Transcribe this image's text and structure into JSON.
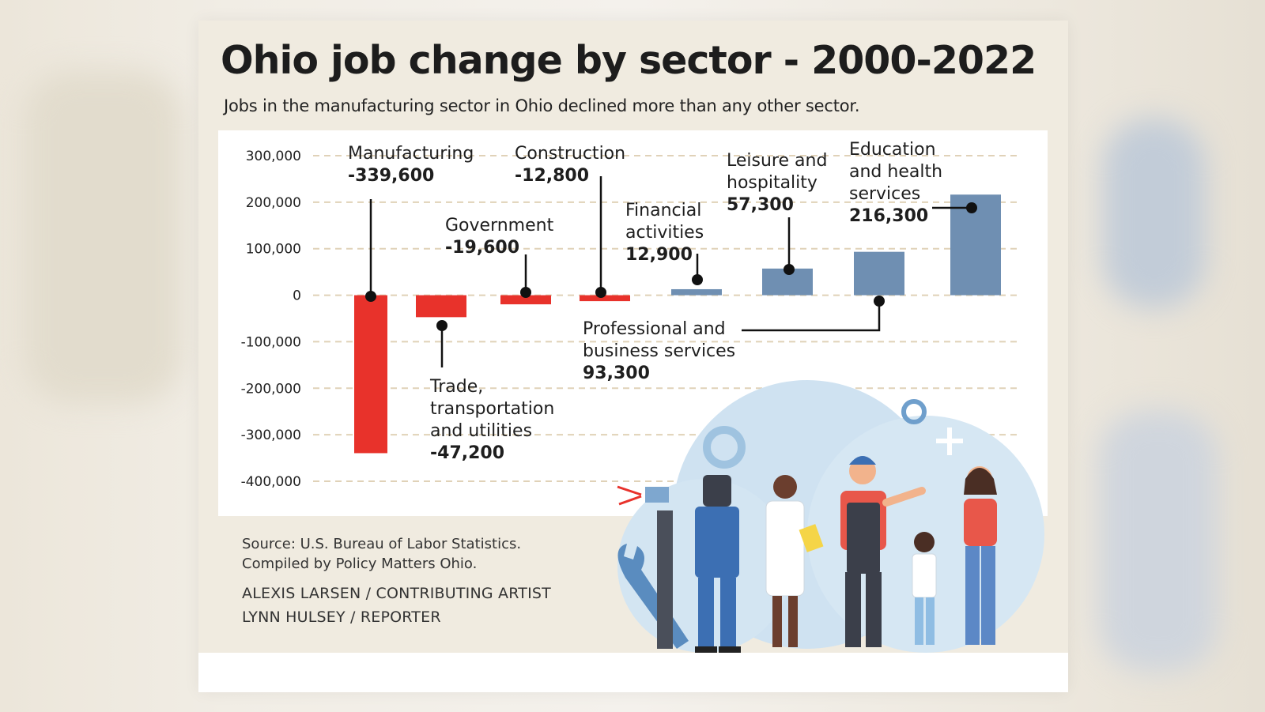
{
  "header": {
    "title": "Ohio job change by sector - 2000-2022",
    "subtitle": "Jobs in the manufacturing sector in Ohio declined more than any other sector."
  },
  "colors": {
    "negative": "#e8322b",
    "positive": "#6f8fb2",
    "gridline": "#e0d2b8",
    "text": "#1e1e1e"
  },
  "chart_data": {
    "type": "bar",
    "title": "Ohio job change by sector - 2000-2022",
    "ylim": [
      -400000,
      300000
    ],
    "yticks": [
      300000,
      200000,
      100000,
      0,
      -100000,
      -200000,
      -300000,
      -400000
    ],
    "ytick_labels": [
      "300,000",
      "200,000",
      "100,000",
      "0",
      "-100,000",
      "-200,000",
      "-300,000",
      "-400,000"
    ],
    "grid": true,
    "legend": "none",
    "categories": [
      "Manufacturing",
      "Trade, transportation and utilities",
      "Government",
      "Construction",
      "Financial activities",
      "Leisure and hospitality",
      "Professional and business services",
      "Education and health services"
    ],
    "values": [
      -339600,
      -47200,
      -19600,
      -12800,
      12900,
      57300,
      93300,
      216300
    ],
    "value_labels": [
      "-339,600",
      "-47,200",
      "-19,600",
      "-12,800",
      "12,900",
      "57,300",
      "93,300",
      "216,300"
    ],
    "callout_lines": [
      [
        "Manufacturing"
      ],
      [
        "Trade,",
        "transportation",
        "and utilities"
      ],
      [
        "Government"
      ],
      [
        "Construction"
      ],
      [
        "Financial",
        "activities"
      ],
      [
        "Leisure and",
        "hospitality"
      ],
      [
        "Professional and",
        "business services"
      ],
      [
        "Education",
        "and health",
        "services"
      ]
    ]
  },
  "footer": {
    "source_line1": "Source:  U.S. Bureau of Labor Statistics.",
    "source_line2": "Compiled by Policy Matters Ohio.",
    "credit1": "ALEXIS LARSEN / CONTRIBUTING ARTIST",
    "credit2": "LYNN HULSEY / REPORTER"
  },
  "illustration": {
    "subject": "workers-and-family-with-gears-illustration"
  }
}
